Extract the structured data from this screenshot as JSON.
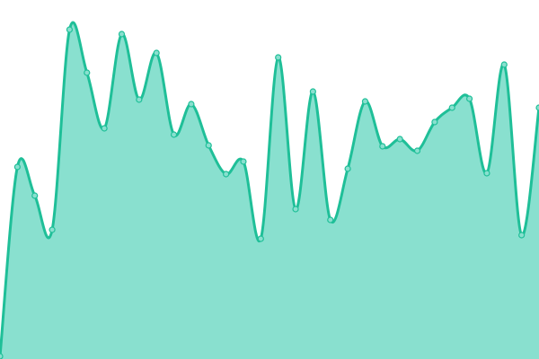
{
  "chart_data": {
    "type": "area",
    "title": "",
    "xlabel": "",
    "ylabel": "",
    "x": [
      0,
      1,
      2,
      3,
      4,
      5,
      6,
      7,
      8,
      9,
      10,
      11,
      12,
      13,
      14,
      15,
      16,
      17,
      18,
      19,
      20,
      21,
      22,
      23,
      24,
      25,
      26,
      27,
      28,
      29,
      30,
      31
    ],
    "series": [
      {
        "values": [
          3,
          214,
          182,
          144,
          367,
          319,
          257,
          362,
          289,
          341,
          250,
          284,
          238,
          206,
          220,
          134,
          336,
          167,
          298,
          155,
          212,
          287,
          237,
          245,
          232,
          264,
          280,
          290,
          207,
          328,
          138,
          280
        ]
      }
    ],
    "ylim": [
      0,
      400
    ],
    "grid": false,
    "axes_visible": false,
    "legend": "none",
    "smooth": true,
    "colors": {
      "line": "#1fbf98",
      "fill": "#89e0cf",
      "marker_fill": "#89e0cf"
    }
  }
}
